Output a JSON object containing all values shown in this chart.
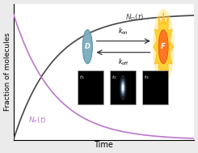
{
  "bg_color": "#ebebeb",
  "plot_bg": "#ffffff",
  "curve_D_color": "#444444",
  "curve_F_color": "#bb77cc",
  "xlabel": "Time",
  "ylabel": "Fraction of molecules",
  "label_D": "$N_{\\mathrm{D}}(t)$",
  "label_F": "$N_{\\mathrm{F}}(t)$",
  "D_circle_color": "#7aacbe",
  "D_circle_edge": "#5590a8",
  "F_star_color": "#FFD030",
  "F_star_edge": "#FFA500",
  "F_inner_color": "#FF7722",
  "F_inner_edge": "#cc5500",
  "D_text": "D",
  "F_text": "F",
  "k_on": "$k_{\\mathrm{on}}$",
  "k_off": "$k_{\\mathrm{off}}$",
  "t1": "$t_1$",
  "t2": "$t_2$",
  "t3": "$t_3$",
  "arrow_color": "#222222",
  "panel_edge": "#aaaaaa"
}
